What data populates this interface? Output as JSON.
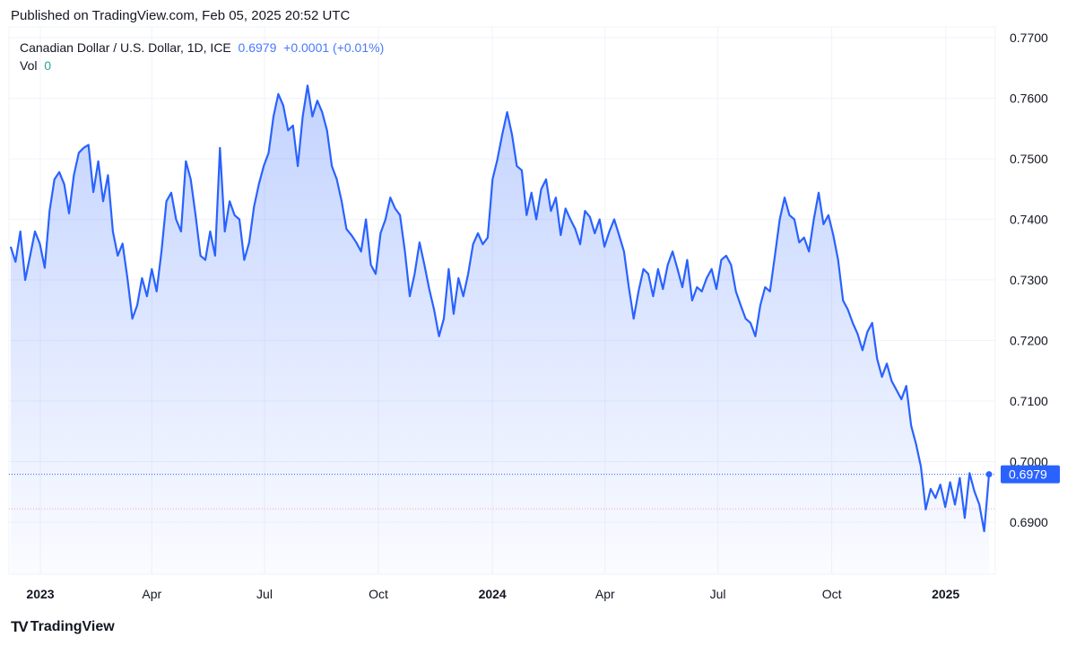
{
  "header": {
    "published": "Published on TradingView.com, Feb 05, 2025 20:52 UTC"
  },
  "legend": {
    "symbol": "Canadian Dollar / U.S. Dollar, 1D, ICE",
    "price": "0.6979",
    "change": "+0.0001 (+0.01%)",
    "vol_label": "Vol",
    "vol_value": "0"
  },
  "footer": {
    "logo_text": "TradingView",
    "logo_mark": "17"
  },
  "colors": {
    "line": "#2962ff",
    "grid": "#f0f3fa",
    "price_tag": "#2962ff",
    "ref_line": "#f7a5b5"
  },
  "chart_data": {
    "type": "area",
    "title": "Canadian Dollar / U.S. Dollar, 1D, ICE",
    "x_start": "2022-12-08",
    "x_end": "2025-02-05",
    "ylim": [
      0.685,
      0.7705
    ],
    "yticks": [
      "0.7700",
      "0.7600",
      "0.7500",
      "0.7400",
      "0.7300",
      "0.7200",
      "0.7100",
      "0.7000",
      "0.6900"
    ],
    "xticks": [
      {
        "label": "2023",
        "date": "2023-01-01",
        "bold": true
      },
      {
        "label": "Apr",
        "date": "2023-04-01"
      },
      {
        "label": "Jul",
        "date": "2023-07-01"
      },
      {
        "label": "Oct",
        "date": "2023-10-01"
      },
      {
        "label": "2024",
        "date": "2024-01-01",
        "bold": true
      },
      {
        "label": "Apr",
        "date": "2024-04-01"
      },
      {
        "label": "Jul",
        "date": "2024-07-01"
      },
      {
        "label": "Oct",
        "date": "2024-10-01"
      },
      {
        "label": "2025",
        "date": "2025-01-01",
        "bold": true
      }
    ],
    "last_price": 0.6979,
    "last_price_label": "0.6979",
    "reference_price": 0.6922,
    "values": [
      0.7355,
      0.733,
      0.738,
      0.73,
      0.734,
      0.738,
      0.736,
      0.732,
      0.7414,
      0.7466,
      0.7478,
      0.7458,
      0.741,
      0.7473,
      0.751,
      0.7518,
      0.7523,
      0.7445,
      0.7496,
      0.743,
      0.7473,
      0.738,
      0.734,
      0.736,
      0.7303,
      0.7236,
      0.7258,
      0.7303,
      0.7273,
      0.7318,
      0.7281,
      0.7347,
      0.743,
      0.7444,
      0.74,
      0.738,
      0.7496,
      0.7466,
      0.7407,
      0.734,
      0.7333,
      0.738,
      0.734,
      0.7518,
      0.738,
      0.743,
      0.7407,
      0.74,
      0.7333,
      0.7362,
      0.7421,
      0.7458,
      0.7488,
      0.751,
      0.757,
      0.7607,
      0.7588,
      0.7547,
      0.7555,
      0.7488,
      0.757,
      0.7621,
      0.757,
      0.7596,
      0.7577,
      0.7547,
      0.7488,
      0.7466,
      0.743,
      0.7384,
      0.7374,
      0.7362,
      0.7347,
      0.74,
      0.7325,
      0.731,
      0.7377,
      0.74,
      0.7436,
      0.7418,
      0.7407,
      0.7347,
      0.7273,
      0.731,
      0.7362,
      0.7325,
      0.7285,
      0.7251,
      0.7207,
      0.7236,
      0.7318,
      0.7244,
      0.7303,
      0.7273,
      0.731,
      0.7359,
      0.7377,
      0.7359,
      0.737,
      0.7466,
      0.7499,
      0.754,
      0.7577,
      0.754,
      0.7488,
      0.7481,
      0.7407,
      0.7444,
      0.74,
      0.745,
      0.7466,
      0.7414,
      0.7436,
      0.7374,
      0.7418,
      0.74,
      0.7384,
      0.7359,
      0.7414,
      0.7404,
      0.7377,
      0.74,
      0.7355,
      0.738,
      0.74,
      0.7374,
      0.7347,
      0.7288,
      0.7236,
      0.7281,
      0.7318,
      0.731,
      0.7273,
      0.7318,
      0.7285,
      0.7325,
      0.7347,
      0.7318,
      0.7288,
      0.7333,
      0.7266,
      0.7288,
      0.7281,
      0.7303,
      0.7318,
      0.7285,
      0.7333,
      0.734,
      0.7325,
      0.7281,
      0.7258,
      0.7236,
      0.7229,
      0.7207,
      0.7258,
      0.7288,
      0.7281,
      0.734,
      0.74,
      0.7436,
      0.7407,
      0.74,
      0.7362,
      0.737,
      0.7347,
      0.74,
      0.7444,
      0.7392,
      0.7407,
      0.7374,
      0.7333,
      0.7266,
      0.7251,
      0.7229,
      0.7211,
      0.7184,
      0.7214,
      0.7229,
      0.717,
      0.714,
      0.7162,
      0.7133,
      0.7118,
      0.7103,
      0.7125,
      0.7059,
      0.7029,
      0.6992,
      0.6921,
      0.6955,
      0.694,
      0.6962,
      0.6925,
      0.6966,
      0.6929,
      0.6973,
      0.6907,
      0.6981,
      0.6951,
      0.6929,
      0.6885,
      0.6979
    ]
  }
}
